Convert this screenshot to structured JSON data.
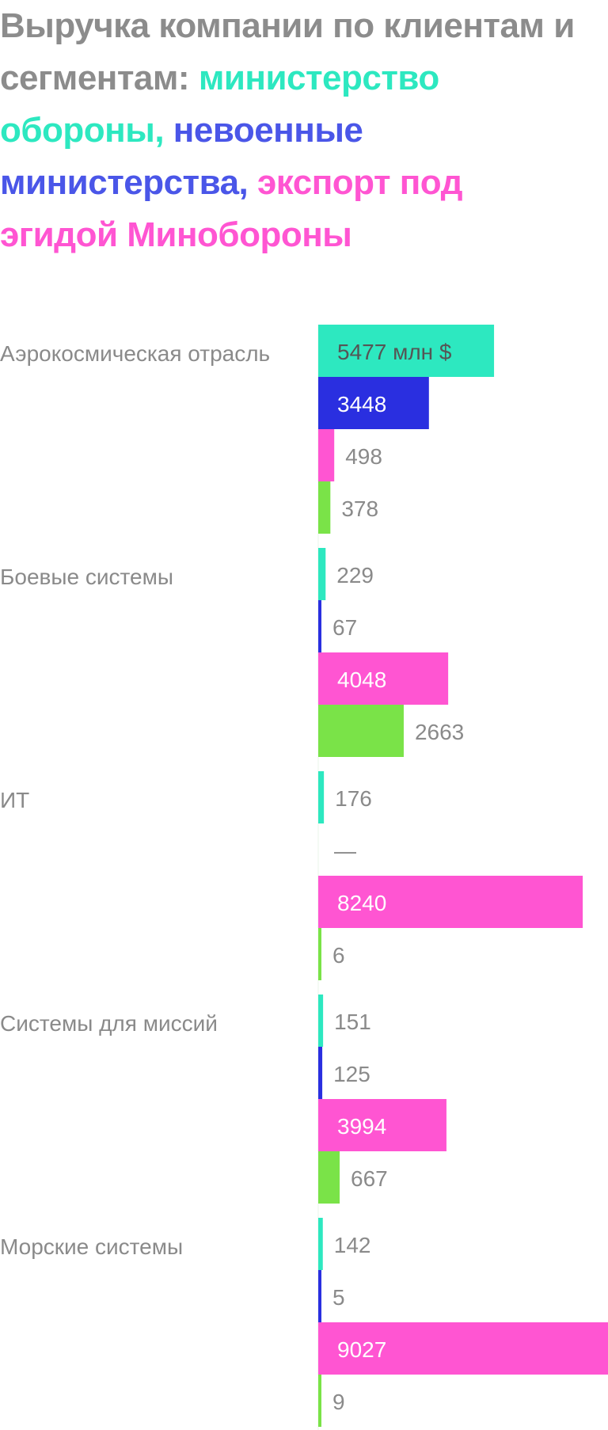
{
  "title": {
    "part1": "Выручка компании по клиентам и сегментам: ",
    "part2": "министерство обороны, ",
    "part3": "невоенные министерства, ",
    "part4": "экспорт под эгидой Минобороны"
  },
  "colors": {
    "title_gray": "#8c8c8c",
    "defense": "#2de8c0",
    "nonmilitary": "#2a2fe0",
    "nonmilitary_title": "#4a56e8",
    "export": "#ff55d2",
    "fourth": "#7ae348",
    "label_gray": "#8a8a8a",
    "inside_text": "#ffffff",
    "first_inside_text": "#555555",
    "axis_line": "#e8f6e8"
  },
  "chart_data": {
    "type": "bar",
    "orientation": "horizontal",
    "unit": "млн $",
    "categories": [
      "Аэрокосмическая отрасль",
      "Боевые системы",
      "ИТ",
      "Системы для миссий",
      "Морские системы"
    ],
    "series": [
      {
        "color_key": "defense",
        "values": [
          5477,
          229,
          176,
          151,
          142
        ],
        "labels": [
          "5477 млн $",
          "229",
          "176",
          "151",
          "142"
        ]
      },
      {
        "color_key": "nonmilitary",
        "values": [
          3448,
          67,
          null,
          125,
          5
        ],
        "labels": [
          "3448",
          "67",
          "—",
          "125",
          "5"
        ]
      },
      {
        "color_key": "export",
        "values": [
          498,
          4048,
          8240,
          3994,
          9027
        ],
        "labels": [
          "498",
          "4048",
          "8240",
          "3994",
          "9027"
        ]
      },
      {
        "color_key": "fourth",
        "values": [
          378,
          2663,
          6,
          667,
          9
        ],
        "labels": [
          "378",
          "2663",
          "6",
          "667",
          "9"
        ]
      }
    ],
    "xlim": [
      0,
      9027
    ],
    "grid": false,
    "legend": "none"
  }
}
